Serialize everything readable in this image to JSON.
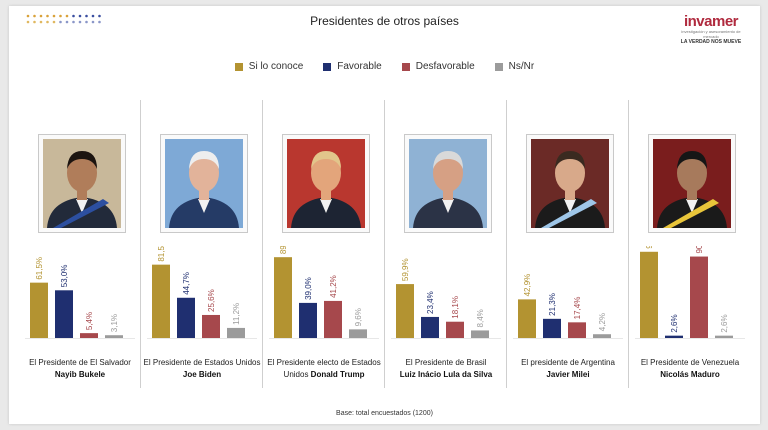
{
  "header": {
    "title": "Presidentes de otros países"
  },
  "logo": {
    "name": "invamer",
    "subtitle": "investigación y asesoramiento de mercado",
    "tagline": "LA VERDAD NOS MUEVE"
  },
  "legend": [
    {
      "label": "Si lo conoce",
      "color": "#b39331"
    },
    {
      "label": "Favorable",
      "color": "#1f2f70"
    },
    {
      "label": "Desfavorable",
      "color": "#a6484c"
    },
    {
      "label": "Ns/Nr",
      "color": "#9b9b9b"
    }
  ],
  "footer": {
    "base": "Base: total encuestados (1200)"
  },
  "chart_data": {
    "type": "bar",
    "ylim": [
      0,
      100
    ],
    "series_names": [
      "Si lo conoce",
      "Favorable",
      "Desfavorable",
      "Ns/Nr"
    ],
    "groups": [
      {
        "caption_line1": "El Presidente de El Salvador",
        "caption_line2": "Nayib Bukele",
        "values": [
          61.5,
          53.0,
          5.4,
          3.1
        ],
        "labels": [
          "61,5%",
          "53,0%",
          "5,4%",
          "3,1%"
        ],
        "portrait": {
          "bg": "#c8b89a",
          "suit": "#222a3a",
          "skin": "#b07d5a",
          "hair": "#1c1410",
          "sash": "#2c4fa0"
        }
      },
      {
        "caption_line1": "El Presidente de Estados Unidos",
        "caption_line2": "Joe Biden",
        "values": [
          81.5,
          44.7,
          25.6,
          11.2
        ],
        "labels": [
          "81,5%",
          "44,7%",
          "25,6%",
          "11,2%"
        ],
        "portrait": {
          "bg": "#7ea9d6",
          "suit": "#253b66",
          "skin": "#e2b39a",
          "hair": "#eeeeee",
          "sash": ""
        }
      },
      {
        "caption_line1": "El Presidente electo de Estados",
        "caption_line2": "Unidos Donald Trump",
        "values": [
          89.8,
          39.0,
          41.2,
          9.6
        ],
        "labels": [
          "89,8%",
          "39,0%",
          "41,2%",
          "9,6%"
        ],
        "portrait": {
          "bg": "#b9372f",
          "suit": "#1d2433",
          "skin": "#e3a57b",
          "hair": "#e2c58b",
          "sash": ""
        }
      },
      {
        "caption_line1": "El Presidente de Brasil",
        "caption_line2": "Luiz Inácio Lula da Silva",
        "values": [
          59.9,
          23.4,
          18.1,
          8.4
        ],
        "labels": [
          "59,9%",
          "23,4%",
          "18,1%",
          "8,4%"
        ],
        "portrait": {
          "bg": "#8fb2d4",
          "suit": "#2b3346",
          "skin": "#d6a084",
          "hair": "#d9d9d9",
          "sash": ""
        }
      },
      {
        "caption_line1": "El presidente de Argentina",
        "caption_line2": "Javier Milei",
        "values": [
          42.9,
          21.3,
          17.4,
          4.2
        ],
        "labels": [
          "42,9%",
          "21,3%",
          "17,4%",
          "4,2%"
        ],
        "portrait": {
          "bg": "#6b2a26",
          "suit": "#1b1b1b",
          "skin": "#d8a98a",
          "hair": "#3a2a20",
          "sash": "#9ec6e8"
        }
      },
      {
        "caption_line1": "El Presidente de Venezuela",
        "caption_line2": "Nicolás Maduro",
        "values": [
          95.8,
          2.6,
          90.5,
          2.6
        ],
        "labels": [
          "95,8%",
          "2,6%",
          "90,5%",
          "2,6%"
        ],
        "portrait": {
          "bg": "#7a1d1d",
          "suit": "#1a1a1a",
          "skin": "#a77a5c",
          "hair": "#161616",
          "sash": "#e8c53a"
        }
      }
    ]
  }
}
